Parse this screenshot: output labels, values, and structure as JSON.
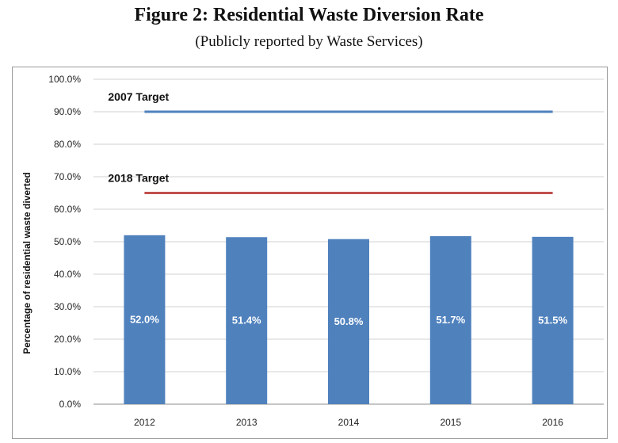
{
  "chart_data": {
    "type": "bar",
    "title": "Figure 2: Residential Waste Diversion Rate",
    "subtitle": "(Publicly reported by Waste Services)",
    "ylabel": "Percentage of residential waste diverted",
    "xlabel": "",
    "categories": [
      "2012",
      "2013",
      "2014",
      "2015",
      "2016"
    ],
    "values": [
      52.0,
      51.4,
      50.8,
      51.7,
      51.5
    ],
    "data_labels": [
      "52.0%",
      "51.4%",
      "50.8%",
      "51.7%",
      "51.5%"
    ],
    "ylim": [
      0,
      100
    ],
    "yticks": [
      0,
      10,
      20,
      30,
      40,
      50,
      60,
      70,
      80,
      90,
      100
    ],
    "ytick_labels": [
      "0.0%",
      "10.0%",
      "20.0%",
      "30.0%",
      "40.0%",
      "50.0%",
      "60.0%",
      "70.0%",
      "80.0%",
      "90.0%",
      "100.0%"
    ],
    "grid": true,
    "bar_color": "#4f81bd",
    "targets": [
      {
        "label": "2007 Target",
        "value": 90,
        "color": "#4f81bd"
      },
      {
        "label": "2018 Target",
        "value": 65,
        "color": "#c0504d"
      }
    ]
  }
}
